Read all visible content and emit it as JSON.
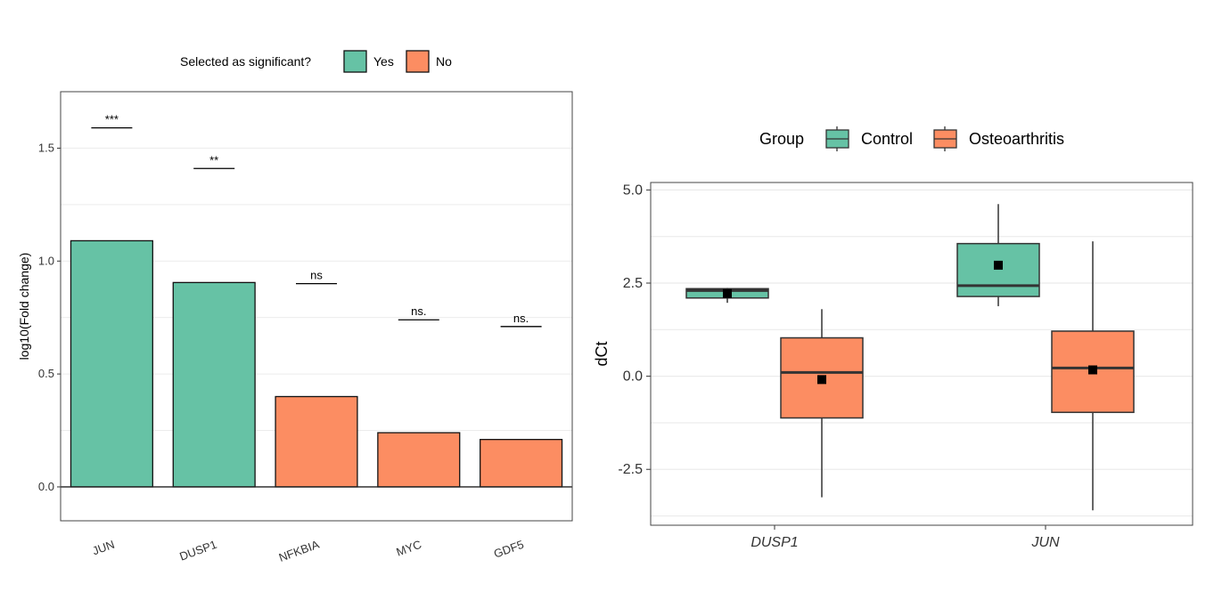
{
  "chart_data": [
    {
      "type": "bar",
      "ylabel": "log10(Fold change)",
      "ylim": [
        -0.15,
        1.75
      ],
      "yticks": [
        0.0,
        0.5,
        1.0,
        1.5
      ],
      "categories": [
        "JUN",
        "DUSP1",
        "NFKBIA",
        "MYC",
        "GDF5"
      ],
      "values": [
        1.09,
        0.905,
        0.4,
        0.24,
        0.21
      ],
      "selected": [
        "Yes",
        "Yes",
        "No",
        "No",
        "No"
      ],
      "significance": [
        {
          "label": "***",
          "y": 1.59
        },
        {
          "label": "**",
          "y": 1.41
        },
        {
          "label": "ns",
          "y": 0.9
        },
        {
          "label": "ns.",
          "y": 0.74
        },
        {
          "label": "ns.",
          "y": 0.71
        }
      ],
      "legend": {
        "title": "Selected as significant?",
        "entries": [
          {
            "label": "Yes",
            "color": "#66c2a5"
          },
          {
            "label": "No",
            "color": "#fc8d62"
          }
        ],
        "position": "top"
      },
      "grid": true
    },
    {
      "type": "box",
      "ylabel": "dCt",
      "ylim": [
        -4,
        5.2
      ],
      "yticks": [
        -2.5,
        0.0,
        2.5,
        5.0
      ],
      "ytick_labels": [
        "-2.5",
        "0.0",
        "2.5",
        "5.0"
      ],
      "categories": [
        "DUSP1",
        "JUN"
      ],
      "legend": {
        "title": "Group",
        "entries": [
          {
            "label": "Control",
            "color": "#66c2a5"
          },
          {
            "label": "Osteoarthritis",
            "color": "#fc8d62"
          }
        ],
        "position": "top"
      },
      "series": [
        {
          "name": "Control",
          "color": "#66c2a5",
          "boxes": [
            {
              "category": "DUSP1",
              "min": 1.97,
              "q1": 2.1,
              "median": 2.3,
              "q3": 2.35,
              "max": 2.37,
              "mean": 2.22
            },
            {
              "category": "JUN",
              "min": 1.88,
              "q1": 2.14,
              "median": 2.43,
              "q3": 3.56,
              "max": 4.62,
              "mean": 2.98
            }
          ]
        },
        {
          "name": "Osteoarthritis",
          "color": "#fc8d62",
          "boxes": [
            {
              "category": "DUSP1",
              "min": -3.25,
              "q1": -1.12,
              "median": 0.1,
              "q3": 1.03,
              "max": 1.8,
              "mean": -0.09
            },
            {
              "category": "JUN",
              "min": -3.6,
              "q1": -0.97,
              "median": 0.22,
              "q3": 1.21,
              "max": 3.62,
              "mean": 0.17
            }
          ]
        }
      ],
      "grid": true
    }
  ]
}
